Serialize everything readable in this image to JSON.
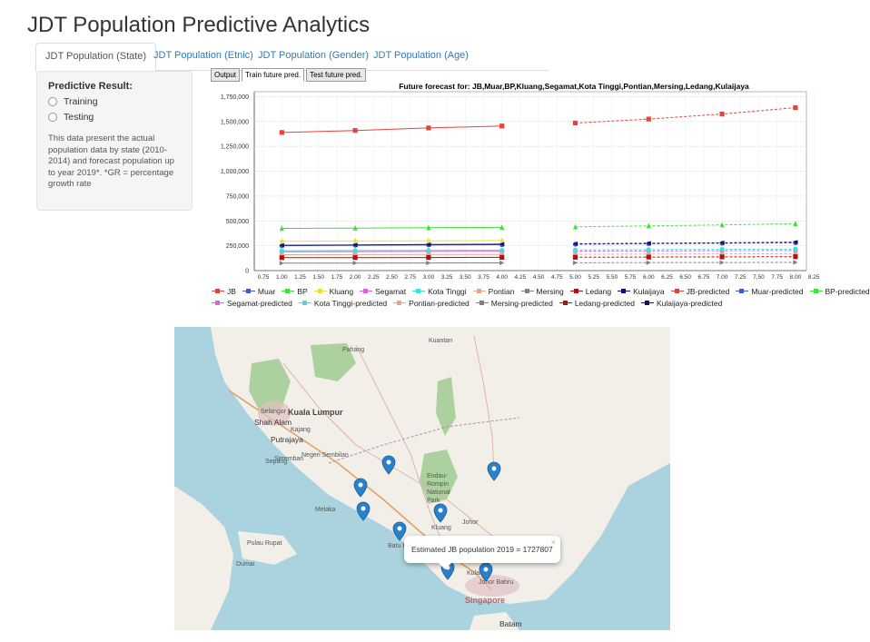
{
  "page": {
    "title": "JDT Population Predictive Analytics"
  },
  "tabs": [
    {
      "label": "JDT Population (State)",
      "active": true
    },
    {
      "label": "JDT Population (Etnic)",
      "active": false
    },
    {
      "label": "JDT Population (Gender)",
      "active": false
    },
    {
      "label": "JDT Population (Age)",
      "active": false
    }
  ],
  "sidebar": {
    "label": "Predictive Result:",
    "options": [
      "Training",
      "Testing"
    ],
    "description": "This data present the actual population data by state (2010-2014) and forecast population up to year 2019*. *GR = percentage growth rate"
  },
  "inner_tabs": [
    "Output",
    "Train future pred.",
    "Test future pred."
  ],
  "chart_data": {
    "type": "line",
    "title": "Future forecast for: JB,Muar,BP,Kluang,Segamat,Kota Tinggi,Pontian,Mersing,Ledang,Kulaijaya",
    "x_ticks": [
      "0.75",
      "1.00",
      "1.25",
      "1.50",
      "1.75",
      "2.00",
      "2.25",
      "2.50",
      "2.75",
      "3.00",
      "3.25",
      "3.50",
      "3.75",
      "4.00",
      "4.25",
      "4.50",
      "4.75",
      "5.00",
      "5.25",
      "5.50",
      "5.75",
      "6.00",
      "6.25",
      "6.50",
      "6.75",
      "7.00",
      "7.25",
      "7.50",
      "7.75",
      "8.00",
      "8.25"
    ],
    "y_ticks": [
      "0",
      "250,000",
      "500,000",
      "750,000",
      "1,000,000",
      "1,250,000",
      "1,500,000",
      "1,750,000"
    ],
    "xlim": [
      0.625,
      8.15
    ],
    "ylim": [
      0,
      1800000
    ],
    "series": [
      {
        "name": "JB",
        "color": "#e8413a",
        "marker": "square",
        "dashed": false,
        "x": [
          1,
          2,
          3,
          4
        ],
        "y": [
          1390000,
          1410000,
          1435000,
          1455000
        ]
      },
      {
        "name": "Muar",
        "color": "#4557cf",
        "marker": "circle",
        "dashed": false,
        "x": [
          1,
          2,
          3,
          4
        ],
        "y": [
          250000,
          255000,
          258000,
          260000
        ]
      },
      {
        "name": "BP",
        "color": "#3ee03a",
        "marker": "triangle",
        "dashed": false,
        "x": [
          1,
          2,
          3,
          4
        ],
        "y": [
          425000,
          428000,
          432000,
          435000
        ]
      },
      {
        "name": "Kluang",
        "color": "#e8e33a",
        "marker": "diamond",
        "dashed": false,
        "x": [
          1,
          2,
          3,
          4
        ],
        "y": [
          295000,
          298000,
          300000,
          302000
        ]
      },
      {
        "name": "Segamat",
        "color": "#e060d8",
        "marker": "circle",
        "dashed": false,
        "x": [
          1,
          2,
          3,
          4
        ],
        "y": [
          190000,
          191000,
          193000,
          195000
        ]
      },
      {
        "name": "Kota Tinggi",
        "color": "#40e0e0",
        "marker": "circle",
        "dashed": false,
        "x": [
          1,
          2,
          3,
          4
        ],
        "y": [
          200000,
          202000,
          204000,
          206000
        ]
      },
      {
        "name": "Pontian",
        "color": "#f0a090",
        "marker": "circle",
        "dashed": false,
        "x": [
          1,
          2,
          3,
          4
        ],
        "y": [
          160000,
          161000,
          162000,
          163000
        ]
      },
      {
        "name": "Mersing",
        "color": "#808080",
        "marker": "triangle-right",
        "dashed": false,
        "x": [
          1,
          2,
          3,
          4
        ],
        "y": [
          75000,
          76000,
          77000,
          78000
        ]
      },
      {
        "name": "Ledang",
        "color": "#b01010",
        "marker": "square",
        "dashed": false,
        "x": [
          1,
          2,
          3,
          4
        ],
        "y": [
          130000,
          131000,
          132000,
          133000
        ]
      },
      {
        "name": "Kulaijaya",
        "color": "#101070",
        "marker": "triangle-left",
        "dashed": false,
        "x": [
          1,
          2,
          3,
          4
        ],
        "y": [
          255000,
          258000,
          262000,
          266000
        ]
      },
      {
        "name": "JB-predicted",
        "color": "#e8413a",
        "marker": "square",
        "dashed": true,
        "x": [
          5,
          6,
          7,
          8
        ],
        "y": [
          1485000,
          1525000,
          1575000,
          1640000
        ]
      },
      {
        "name": "Muar-predicted",
        "color": "#4557cf",
        "marker": "circle",
        "dashed": true,
        "x": [
          5,
          6,
          7,
          8
        ],
        "y": [
          265000,
          270000,
          275000,
          280000
        ]
      },
      {
        "name": "BP-predicted",
        "color": "#3ee03a",
        "marker": "triangle",
        "dashed": true,
        "x": [
          5,
          6,
          7,
          8
        ],
        "y": [
          440000,
          450000,
          460000,
          472000
        ]
      },
      {
        "name": "Segamat-predicted",
        "color": "#e060d8",
        "marker": "circle",
        "dashed": true,
        "x": [
          5,
          6,
          7,
          8
        ],
        "y": [
          196000,
          198000,
          200000,
          203000
        ]
      },
      {
        "name": "Kota Tinggi-predicted",
        "color": "#40e0e0",
        "marker": "circle",
        "dashed": true,
        "x": [
          5,
          6,
          7,
          8
        ],
        "y": [
          208000,
          211000,
          214000,
          217000
        ]
      },
      {
        "name": "Pontian-predicted",
        "color": "#f0a090",
        "marker": "circle",
        "dashed": true,
        "x": [
          5,
          6,
          7,
          8
        ],
        "y": [
          164000,
          166000,
          168000,
          170000
        ]
      },
      {
        "name": "Mersing-predicted",
        "color": "#808080",
        "marker": "triangle-right",
        "dashed": true,
        "x": [
          5,
          6,
          7,
          8
        ],
        "y": [
          79000,
          80000,
          81000,
          82000
        ]
      },
      {
        "name": "Ledang-predicted",
        "color": "#b01010",
        "marker": "square",
        "dashed": true,
        "x": [
          5,
          6,
          7,
          8
        ],
        "y": [
          134000,
          136000,
          138000,
          140000
        ]
      },
      {
        "name": "Kulaijaya-predicted",
        "color": "#101070",
        "marker": "triangle-left",
        "dashed": true,
        "x": [
          5,
          6,
          7,
          8
        ],
        "y": [
          270000,
          275000,
          280000,
          286000
        ]
      }
    ],
    "legend_position": "bottom"
  },
  "map": {
    "labels": {
      "pahang": "Pahang",
      "kuantan": "Kuantan",
      "selangor": "Selangor",
      "kuala_lumpur": "Kuala Lumpur",
      "shah_alam": "Shah Alam",
      "kajang": "Kajang",
      "putrajaya": "Putrajaya",
      "negeri_sembilan": "Negeri Sembilan",
      "seremban": "Seremban",
      "sepang": "Sepang",
      "melaka": "Melaka",
      "endau_rompin": "Endau-Rompin National Park",
      "johor": "Johor",
      "kluang": "Kluang",
      "batu_pahat": "Batu Pahat",
      "kulai": "Kulai",
      "johor_bahru": "Johor Bahru",
      "singapore": "Singapore",
      "batam": "Batam",
      "pulau_rupat": "Pulau Rupat",
      "dumai": "Dumai"
    },
    "popup_text": "Estimated JB population 2019 = 1727807",
    "popup_close": "×"
  }
}
